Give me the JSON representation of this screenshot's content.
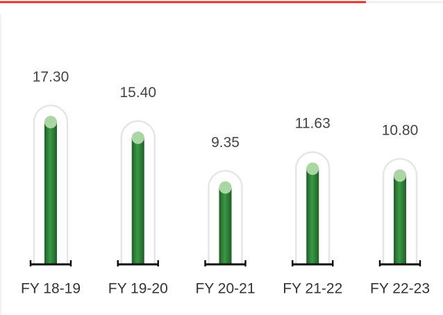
{
  "chart_data": {
    "type": "bar",
    "categories": [
      "FY 18-19",
      "FY 19-20",
      "FY 20-21",
      "FY 21-22",
      "FY 22-23"
    ],
    "values": [
      17.3,
      15.4,
      9.35,
      11.63,
      10.8
    ],
    "value_labels": [
      "17.30",
      "15.40",
      "9.35",
      "11.63",
      "10.80"
    ],
    "color": "#2e8b3a"
  }
}
